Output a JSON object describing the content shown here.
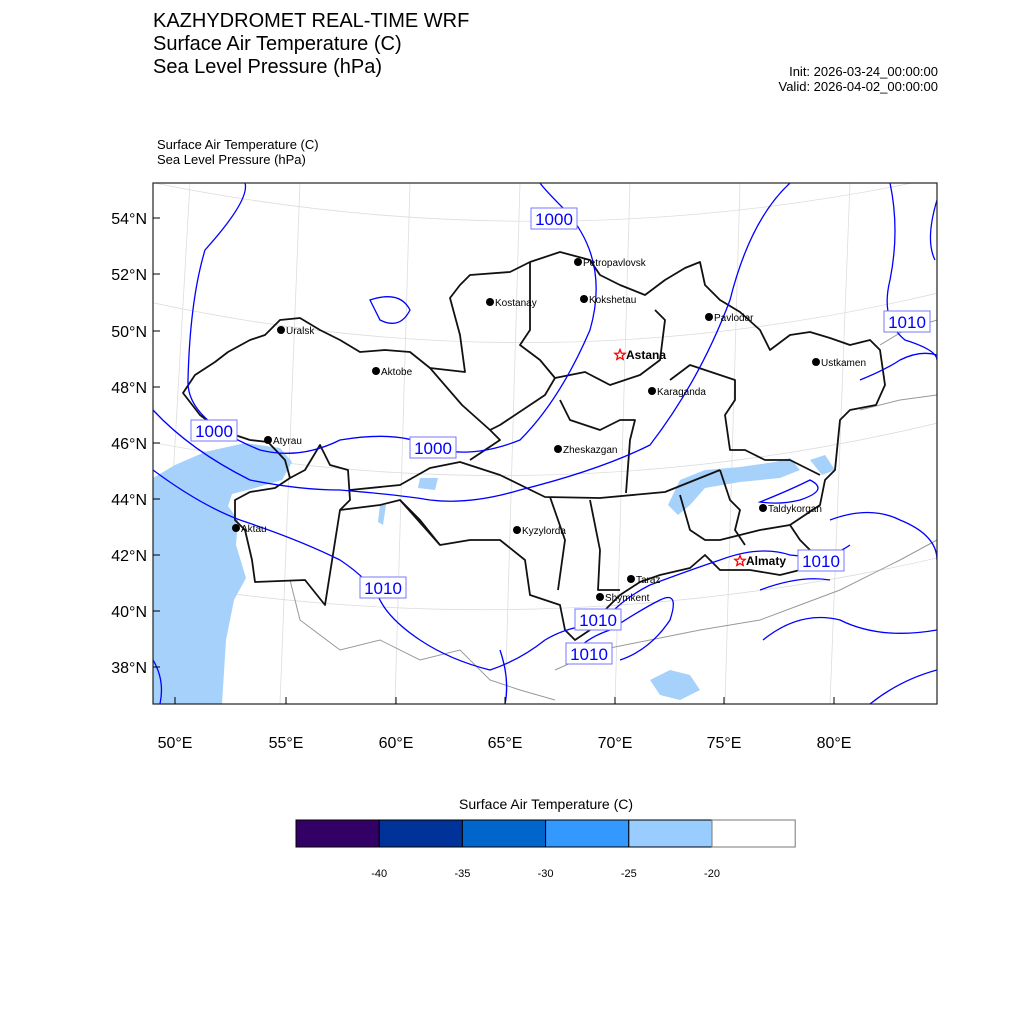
{
  "header": {
    "title_lines": [
      "KAZHYDROMET REAL-TIME WRF",
      "Surface Air Temperature  (C)",
      "Sea Level Pressure  (hPa)"
    ],
    "init": "Init: 2026-03-24_00:00:00",
    "valid": "Valid: 2026-04-02_00:00:00"
  },
  "subtitle_lines": [
    "Surface Air Temperature   (C)",
    "Sea Level Pressure   (hPa)"
  ],
  "chart_data": {
    "type": "map",
    "lat_ticks": [
      "54°N",
      "52°N",
      "50°N",
      "48°N",
      "46°N",
      "44°N",
      "42°N",
      "40°N",
      "38°N"
    ],
    "lon_ticks": [
      "50°E",
      "55°E",
      "60°E",
      "65°E",
      "70°E",
      "75°E",
      "80°E"
    ],
    "cities": [
      {
        "name": "Petropavlovsk",
        "capital": false
      },
      {
        "name": "Kokshetau",
        "capital": false
      },
      {
        "name": "Kostanay",
        "capital": false
      },
      {
        "name": "Pavlodar",
        "capital": false
      },
      {
        "name": "Uralsk",
        "capital": false
      },
      {
        "name": "Astana",
        "capital": true
      },
      {
        "name": "Ustkamen",
        "capital": false
      },
      {
        "name": "Aktobe",
        "capital": false
      },
      {
        "name": "Karaganda",
        "capital": false
      },
      {
        "name": "Atyrau",
        "capital": false
      },
      {
        "name": "Zheskazgan",
        "capital": false
      },
      {
        "name": "Taldykorgan",
        "capital": false
      },
      {
        "name": "Aktau",
        "capital": false
      },
      {
        "name": "Kyzylorda",
        "capital": false
      },
      {
        "name": "Almaty",
        "capital": true
      },
      {
        "name": "Taraz",
        "capital": false
      },
      {
        "name": "Shymkent",
        "capital": false
      }
    ],
    "contour_labels": [
      "1000",
      "1000",
      "1000",
      "1010",
      "1010",
      "1010",
      "1010",
      "1010"
    ],
    "colorbar": {
      "title": "Surface Air Temperature (C)",
      "colors": [
        "#330066",
        "#003399",
        "#0066cc",
        "#3399ff",
        "#99ccff",
        "#ffffff"
      ],
      "labels": [
        "-40",
        "-35",
        "-30",
        "-25",
        "-20"
      ]
    },
    "contour_color": "#0000ff",
    "water_color": "#a6d1fb"
  }
}
